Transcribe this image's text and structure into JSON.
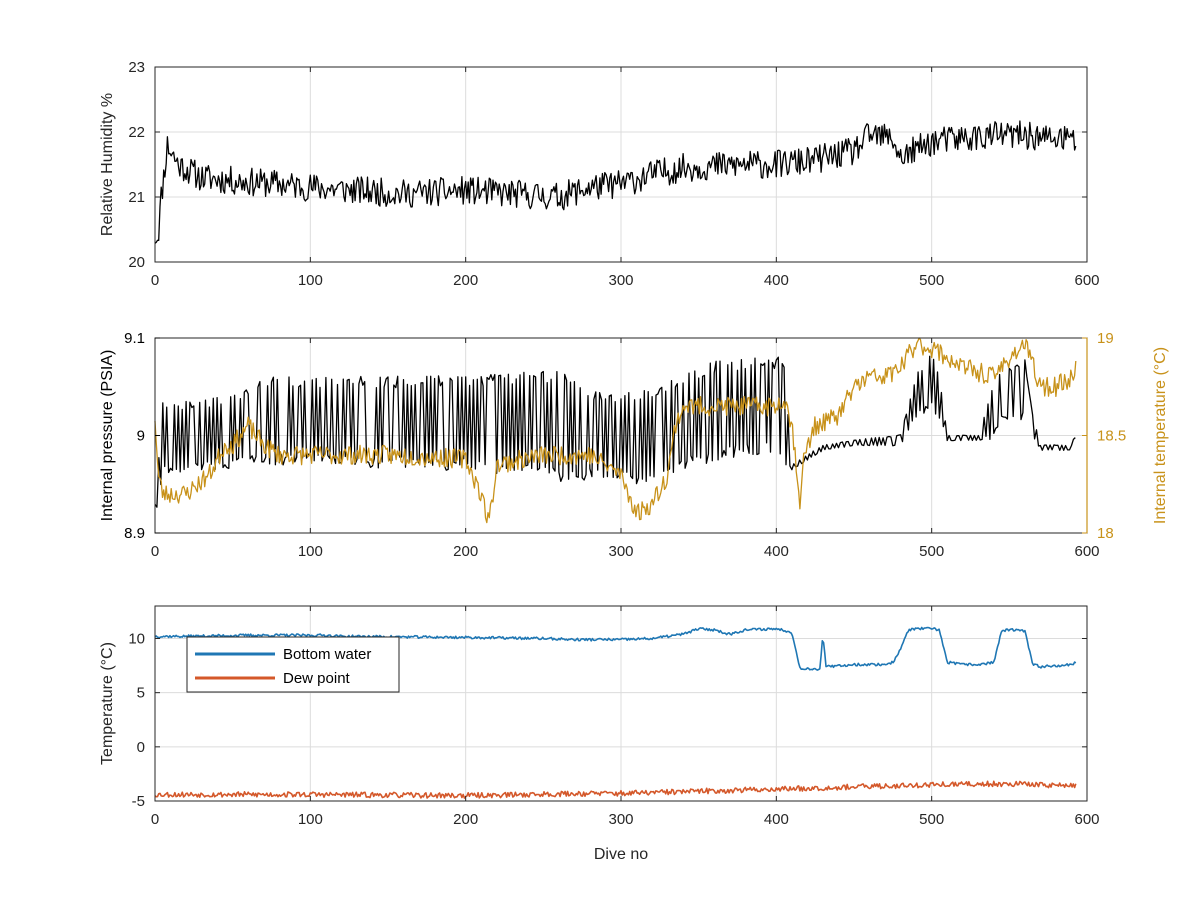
{
  "colors": {
    "humidity": "#000000",
    "pressure": "#000000",
    "internal_temperature": "#C8921A",
    "bottom_water": "#1F77B4",
    "dew_point": "#D4582A",
    "grid": "#DCDCDC",
    "axis": "#262626"
  },
  "chart_data": [
    {
      "type": "line",
      "title": "",
      "xlabel": "",
      "ylabel": "Relative Humidity %",
      "xlim": [
        0,
        600
      ],
      "ylim": [
        20,
        23
      ],
      "xticks": [
        0,
        100,
        200,
        300,
        400,
        500,
        600
      ],
      "xtick_labels": [
        "0",
        "100",
        "200",
        "300",
        "400",
        "500",
        "600"
      ],
      "yticks": [
        20,
        21,
        22,
        23
      ],
      "ytick_labels": [
        "20",
        "21",
        "22",
        "23"
      ],
      "grid": true,
      "series": [
        {
          "color": "#000000",
          "noise": 0.22,
          "seed": 11,
          "x": [
            0,
            2,
            4,
            8,
            15,
            30,
            50,
            80,
            100,
            130,
            160,
            200,
            230,
            260,
            280,
            300,
            320,
            340,
            380,
            400,
            420,
            450,
            460,
            475,
            480,
            500,
            520,
            540,
            560,
            575,
            590,
            593
          ],
          "y": [
            20.4,
            20.4,
            21.0,
            21.8,
            21.5,
            21.3,
            21.25,
            21.2,
            21.15,
            21.1,
            21.05,
            21.1,
            21.05,
            21.0,
            21.15,
            21.2,
            21.35,
            21.45,
            21.5,
            21.5,
            21.55,
            21.7,
            21.95,
            21.9,
            21.6,
            21.85,
            21.9,
            21.95,
            21.95,
            21.9,
            21.9,
            21.8
          ]
        }
      ]
    },
    {
      "type": "line",
      "title": "",
      "xlabel": "",
      "ylabel": "Internal pressure (PSIA)",
      "y2label": "Internal temperature (°C)",
      "xlim": [
        0,
        600
      ],
      "ylim": [
        8.9,
        9.1
      ],
      "y2lim": [
        18,
        19
      ],
      "xticks": [
        0,
        100,
        200,
        300,
        400,
        500,
        600
      ],
      "xtick_labels": [
        "0",
        "100",
        "200",
        "300",
        "400",
        "500",
        "600"
      ],
      "yticks": [
        8.9,
        9.0,
        9.1
      ],
      "ytick_labels": [
        "8.9",
        "9",
        "9.1"
      ],
      "y2ticks": [
        18,
        18.5,
        19
      ],
      "y2tick_labels": [
        "18",
        "18.5",
        "19"
      ],
      "grid": true,
      "series": [
        {
          "axis": "left",
          "color": "#000000",
          "style": "sawtooth",
          "x": [
            0,
            5,
            45,
            70,
            100,
            200,
            260,
            280,
            320,
            340,
            360,
            400,
            405,
            410,
            430,
            450,
            480,
            490,
            495,
            500,
            505,
            510,
            530,
            540,
            545,
            560,
            565,
            570,
            590,
            593
          ],
          "low": [
            8.915,
            8.965,
            8.97,
            8.975,
            8.975,
            8.97,
            8.96,
            8.96,
            8.955,
            8.97,
            8.98,
            8.99,
            8.975,
            8.965,
            8.985,
            8.99,
            8.99,
            9.02,
            9.025,
            9.03,
            9.02,
            8.995,
            8.995,
            9.0,
            9.02,
            9.02,
            9.0,
            8.985,
            8.985,
            9.0
          ],
          "high": [
            8.93,
            9.03,
            9.035,
            9.055,
            9.055,
            9.055,
            9.06,
            9.04,
            9.04,
            9.06,
            9.07,
            9.075,
            9.075,
            8.97,
            8.99,
            8.995,
            9.0,
            9.06,
            9.07,
            9.085,
            9.06,
            9.0,
            9.0,
            9.05,
            9.065,
            9.075,
            9.02,
            8.99,
            8.99,
            9.005
          ]
        },
        {
          "axis": "right",
          "color": "#C8921A",
          "noise": 0.05,
          "seed": 23,
          "x": [
            0,
            2,
            5,
            10,
            20,
            35,
            45,
            50,
            60,
            70,
            80,
            100,
            150,
            200,
            210,
            215,
            220,
            250,
            280,
            300,
            310,
            320,
            330,
            335,
            340,
            360,
            380,
            400,
            405,
            410,
            413,
            415,
            418,
            425,
            440,
            450,
            460,
            470,
            480,
            490,
            500,
            510,
            520,
            540,
            550,
            560,
            570,
            580,
            590,
            593
          ],
          "y": [
            18.6,
            18.3,
            18.2,
            18.2,
            18.2,
            18.3,
            18.45,
            18.45,
            18.55,
            18.45,
            18.4,
            18.4,
            18.4,
            18.38,
            18.2,
            18.05,
            18.35,
            18.4,
            18.4,
            18.3,
            18.1,
            18.15,
            18.3,
            18.55,
            18.65,
            18.65,
            18.65,
            18.65,
            18.7,
            18.55,
            18.35,
            18.15,
            18.4,
            18.55,
            18.6,
            18.75,
            18.8,
            18.8,
            18.85,
            18.97,
            18.95,
            18.9,
            18.85,
            18.8,
            18.9,
            18.97,
            18.75,
            18.75,
            18.8,
            18.85
          ]
        }
      ]
    },
    {
      "type": "line",
      "title": "",
      "xlabel": "Dive no",
      "ylabel": "Temperature (°C)",
      "xlim": [
        0,
        600
      ],
      "ylim": [
        -5,
        13
      ],
      "xticks": [
        0,
        100,
        200,
        300,
        400,
        500,
        600
      ],
      "xtick_labels": [
        "0",
        "100",
        "200",
        "300",
        "400",
        "500",
        "600"
      ],
      "yticks": [
        -5,
        0,
        5,
        10
      ],
      "ytick_labels": [
        "-5",
        "0",
        "5",
        "10"
      ],
      "grid": true,
      "legend": "upper-left",
      "series": [
        {
          "name": "Bottom water",
          "color": "#1F77B4",
          "noise": 0.12,
          "seed": 37,
          "x": [
            0,
            20,
            60,
            110,
            120,
            200,
            250,
            270,
            300,
            320,
            340,
            350,
            360,
            370,
            380,
            400,
            410,
            415,
            420,
            428,
            430,
            432,
            435,
            450,
            470,
            475,
            480,
            485,
            490,
            500,
            505,
            510,
            520,
            530,
            540,
            545,
            550,
            560,
            565,
            570,
            590,
            593
          ],
          "y": [
            10.2,
            10.2,
            10.3,
            10.3,
            10.2,
            10.1,
            10.0,
            9.9,
            9.9,
            10.0,
            10.4,
            10.9,
            10.8,
            10.4,
            10.8,
            10.9,
            10.6,
            7.3,
            7.2,
            7.2,
            10.3,
            7.4,
            7.4,
            7.6,
            7.6,
            7.8,
            9.0,
            10.8,
            10.9,
            10.9,
            10.8,
            7.8,
            7.6,
            7.6,
            7.8,
            10.7,
            10.8,
            10.7,
            7.6,
            7.4,
            7.6,
            7.8
          ]
        },
        {
          "name": "Dew point",
          "color": "#D4582A",
          "noise": 0.25,
          "seed": 53,
          "x": [
            0,
            100,
            200,
            280,
            300,
            400,
            450,
            500,
            550,
            593
          ],
          "y": [
            -4.4,
            -4.4,
            -4.5,
            -4.3,
            -4.3,
            -3.9,
            -3.7,
            -3.5,
            -3.4,
            -3.6
          ]
        }
      ]
    }
  ]
}
